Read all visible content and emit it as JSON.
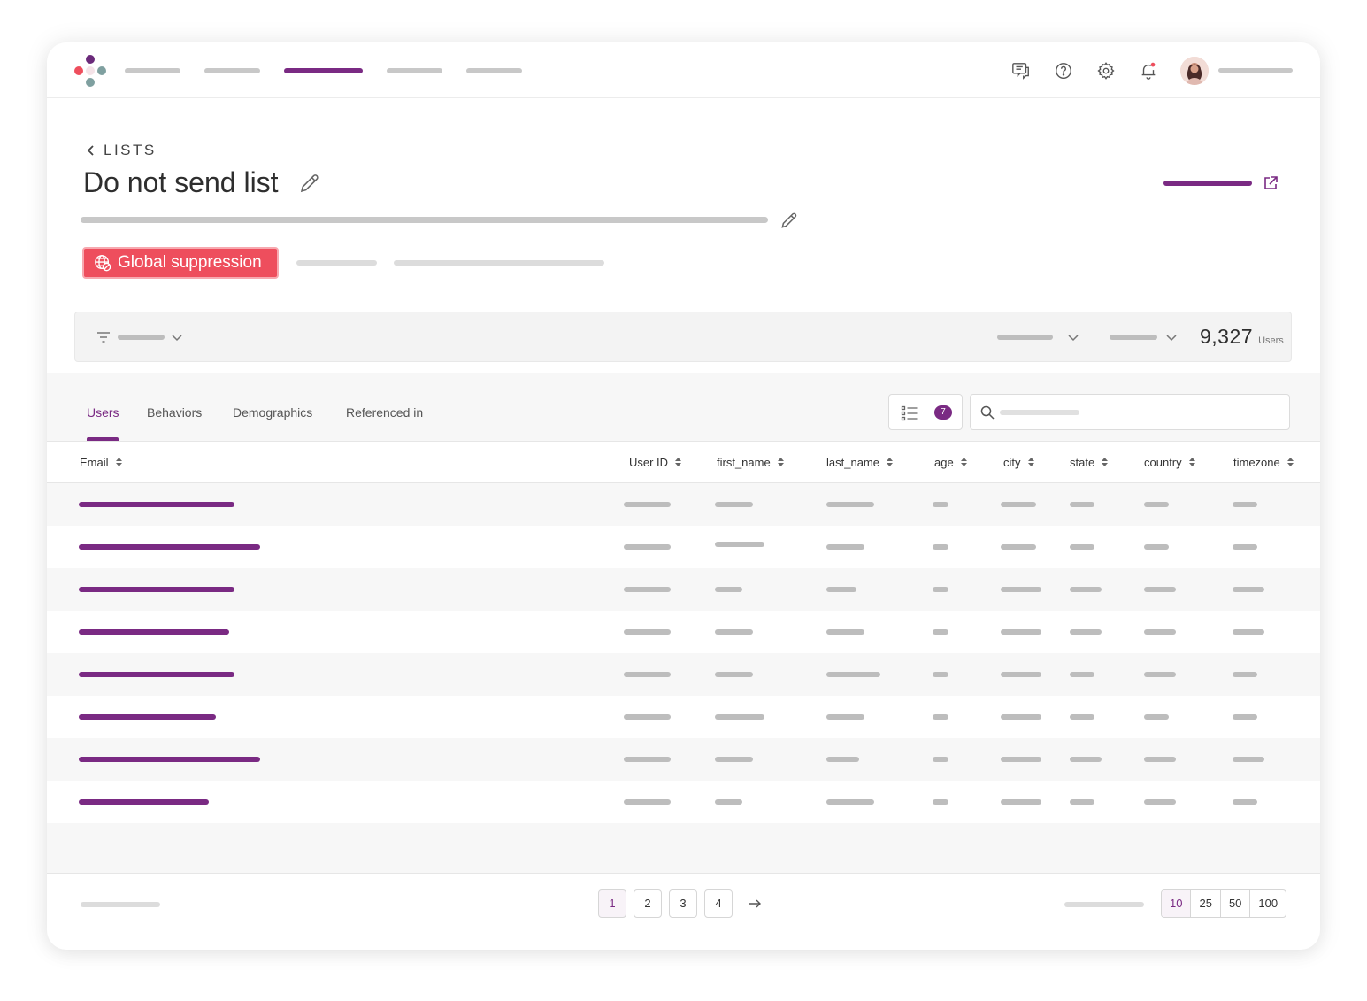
{
  "header": {
    "back_label": "LISTS",
    "title": "Do not send list",
    "badge_label": "Global suppression"
  },
  "summary": {
    "count": "9,327",
    "count_label": "Users"
  },
  "tabs": [
    {
      "label": "Users",
      "active": true
    },
    {
      "label": "Behaviors",
      "active": false
    },
    {
      "label": "Demographics",
      "active": false
    },
    {
      "label": "Referenced in",
      "active": false
    }
  ],
  "columns_badge": "7",
  "table": {
    "columns": [
      "Email",
      "User ID",
      "first_name",
      "last_name",
      "age",
      "city",
      "state",
      "country",
      "timezone"
    ]
  },
  "pagination": {
    "pages": [
      "1",
      "2",
      "3",
      "4"
    ],
    "active_page": "1",
    "next_label": "→",
    "page_sizes": [
      "10",
      "25",
      "50",
      "100"
    ],
    "active_size": "10"
  },
  "colors": {
    "accent": "#7a2a83",
    "badge": "#ee4e5d",
    "placeholder": "#bdbdbd"
  },
  "icons": {
    "topbar": [
      "feedback-icon",
      "help-icon",
      "settings-icon",
      "notification-bell-icon"
    ],
    "header": [
      "chevron-left-icon",
      "pencil-icon",
      "external-link-icon",
      "globe-block-icon"
    ],
    "toolbar": [
      "filter-icon",
      "chevron-down-icon",
      "column-list-icon",
      "search-icon",
      "sort-icon",
      "arrow-right-icon"
    ]
  }
}
